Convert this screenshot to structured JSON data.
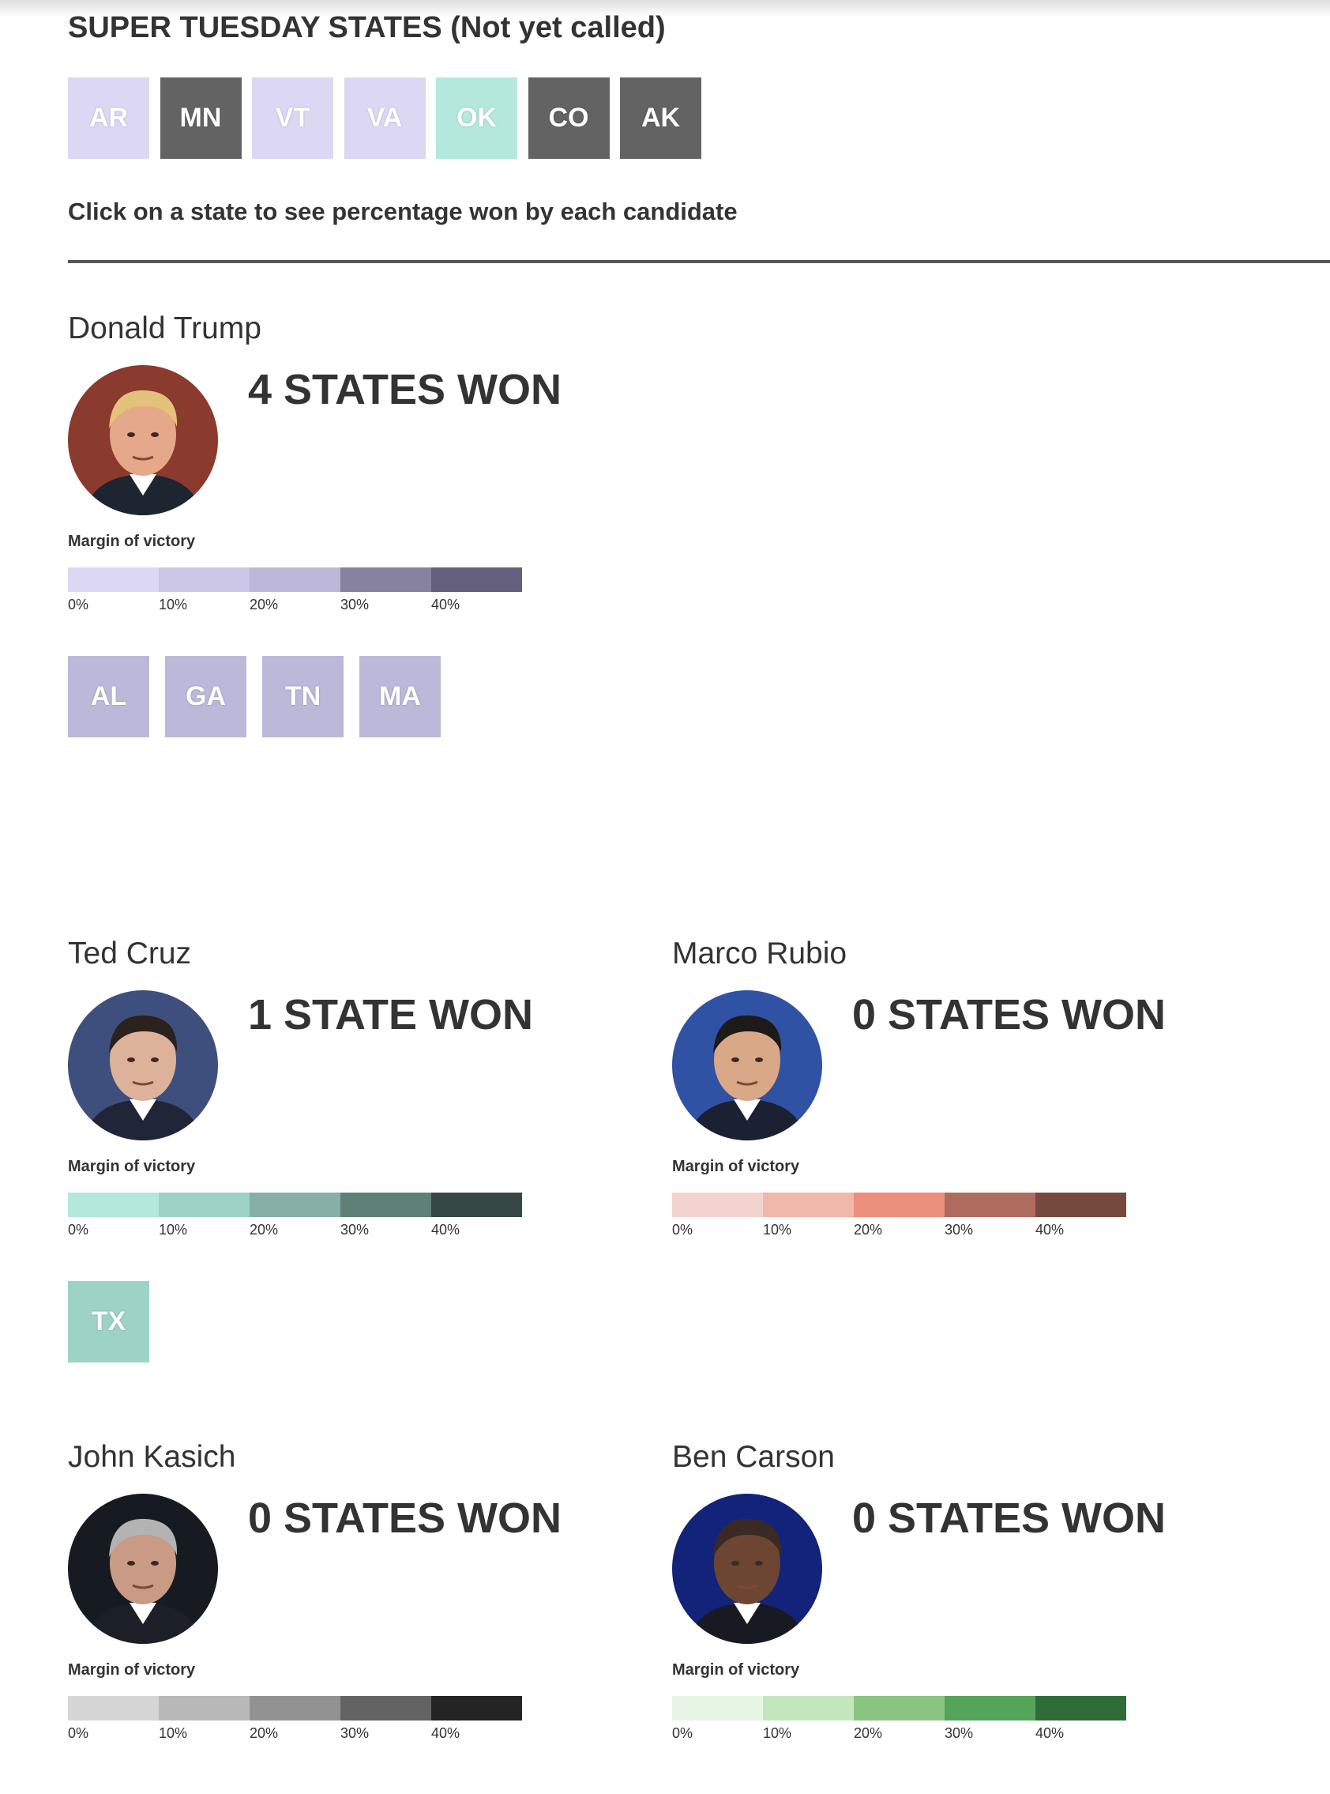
{
  "header": {
    "title": "SUPER TUESDAY STATES (Not yet called)",
    "instruction": "Click on a state to see percentage won by each candidate"
  },
  "uncalled_states": [
    {
      "abbr": "AR",
      "color": "#dcd8f4"
    },
    {
      "abbr": "MN",
      "color": "#636363"
    },
    {
      "abbr": "VT",
      "color": "#dcd8f4"
    },
    {
      "abbr": "VA",
      "color": "#dcd8f4"
    },
    {
      "abbr": "OK",
      "color": "#b4e8dc"
    },
    {
      "abbr": "CO",
      "color": "#636363"
    },
    {
      "abbr": "AK",
      "color": "#636363"
    }
  ],
  "legend_title": "Margin of victory",
  "legend_ticks": [
    "0%",
    "10%",
    "20%",
    "30%",
    "40%"
  ],
  "candidates": [
    {
      "name": "Donald Trump",
      "states_won_label": "4 STATES WON",
      "scale": [
        "#dcd8f4",
        "#cbc5e6",
        "#bcb7d8",
        "#86829f",
        "#635f7c"
      ],
      "won_states": [
        {
          "abbr": "AL",
          "color": "#bcb8da"
        },
        {
          "abbr": "GA",
          "color": "#bcb8da"
        },
        {
          "abbr": "TN",
          "color": "#bcb8da"
        },
        {
          "abbr": "MA",
          "color": "#bcb8da"
        }
      ],
      "photo": {
        "bg": "#8b3a2e",
        "skin": "#e5a888",
        "hair": "#e3c27c",
        "suit": "#1d2530"
      }
    },
    {
      "name": "Ted Cruz",
      "states_won_label": "1 STATE WON",
      "scale": [
        "#b4e8dc",
        "#9cd3c6",
        "#85afa7",
        "#5e8077",
        "#354845"
      ],
      "won_states": [
        {
          "abbr": "TX",
          "color": "#9cd3c6"
        }
      ],
      "photo": {
        "bg": "#3f4f7d",
        "skin": "#dcb39a",
        "hair": "#2b211d",
        "suit": "#202637"
      }
    },
    {
      "name": "Marco Rubio",
      "states_won_label": "0 STATES WON",
      "scale": [
        "#f3d3cf",
        "#f0b7ab",
        "#ea907c",
        "#b06b5f",
        "#764a3e"
      ],
      "won_states": [],
      "photo": {
        "bg": "#2f52a4",
        "skin": "#d9a887",
        "hair": "#1e1a18",
        "suit": "#1b2033"
      }
    },
    {
      "name": "John Kasich",
      "states_won_label": "0 STATES WON",
      "scale": [
        "#d6d6d6",
        "#b9b9b9",
        "#929292",
        "#636363",
        "#242424"
      ],
      "won_states": [],
      "photo": {
        "bg": "#161b22",
        "skin": "#c99b86",
        "hair": "#b3b3b3",
        "suit": "#1b1f28"
      }
    },
    {
      "name": "Ben Carson",
      "states_won_label": "0 STATES WON",
      "scale": [
        "#e8f5e5",
        "#c4e6bd",
        "#89c480",
        "#56a35b",
        "#2e6c38"
      ],
      "won_states": [],
      "photo": {
        "bg": "#122379",
        "skin": "#6d4533",
        "hair": "#3b2a24",
        "suit": "#181a22"
      }
    }
  ]
}
